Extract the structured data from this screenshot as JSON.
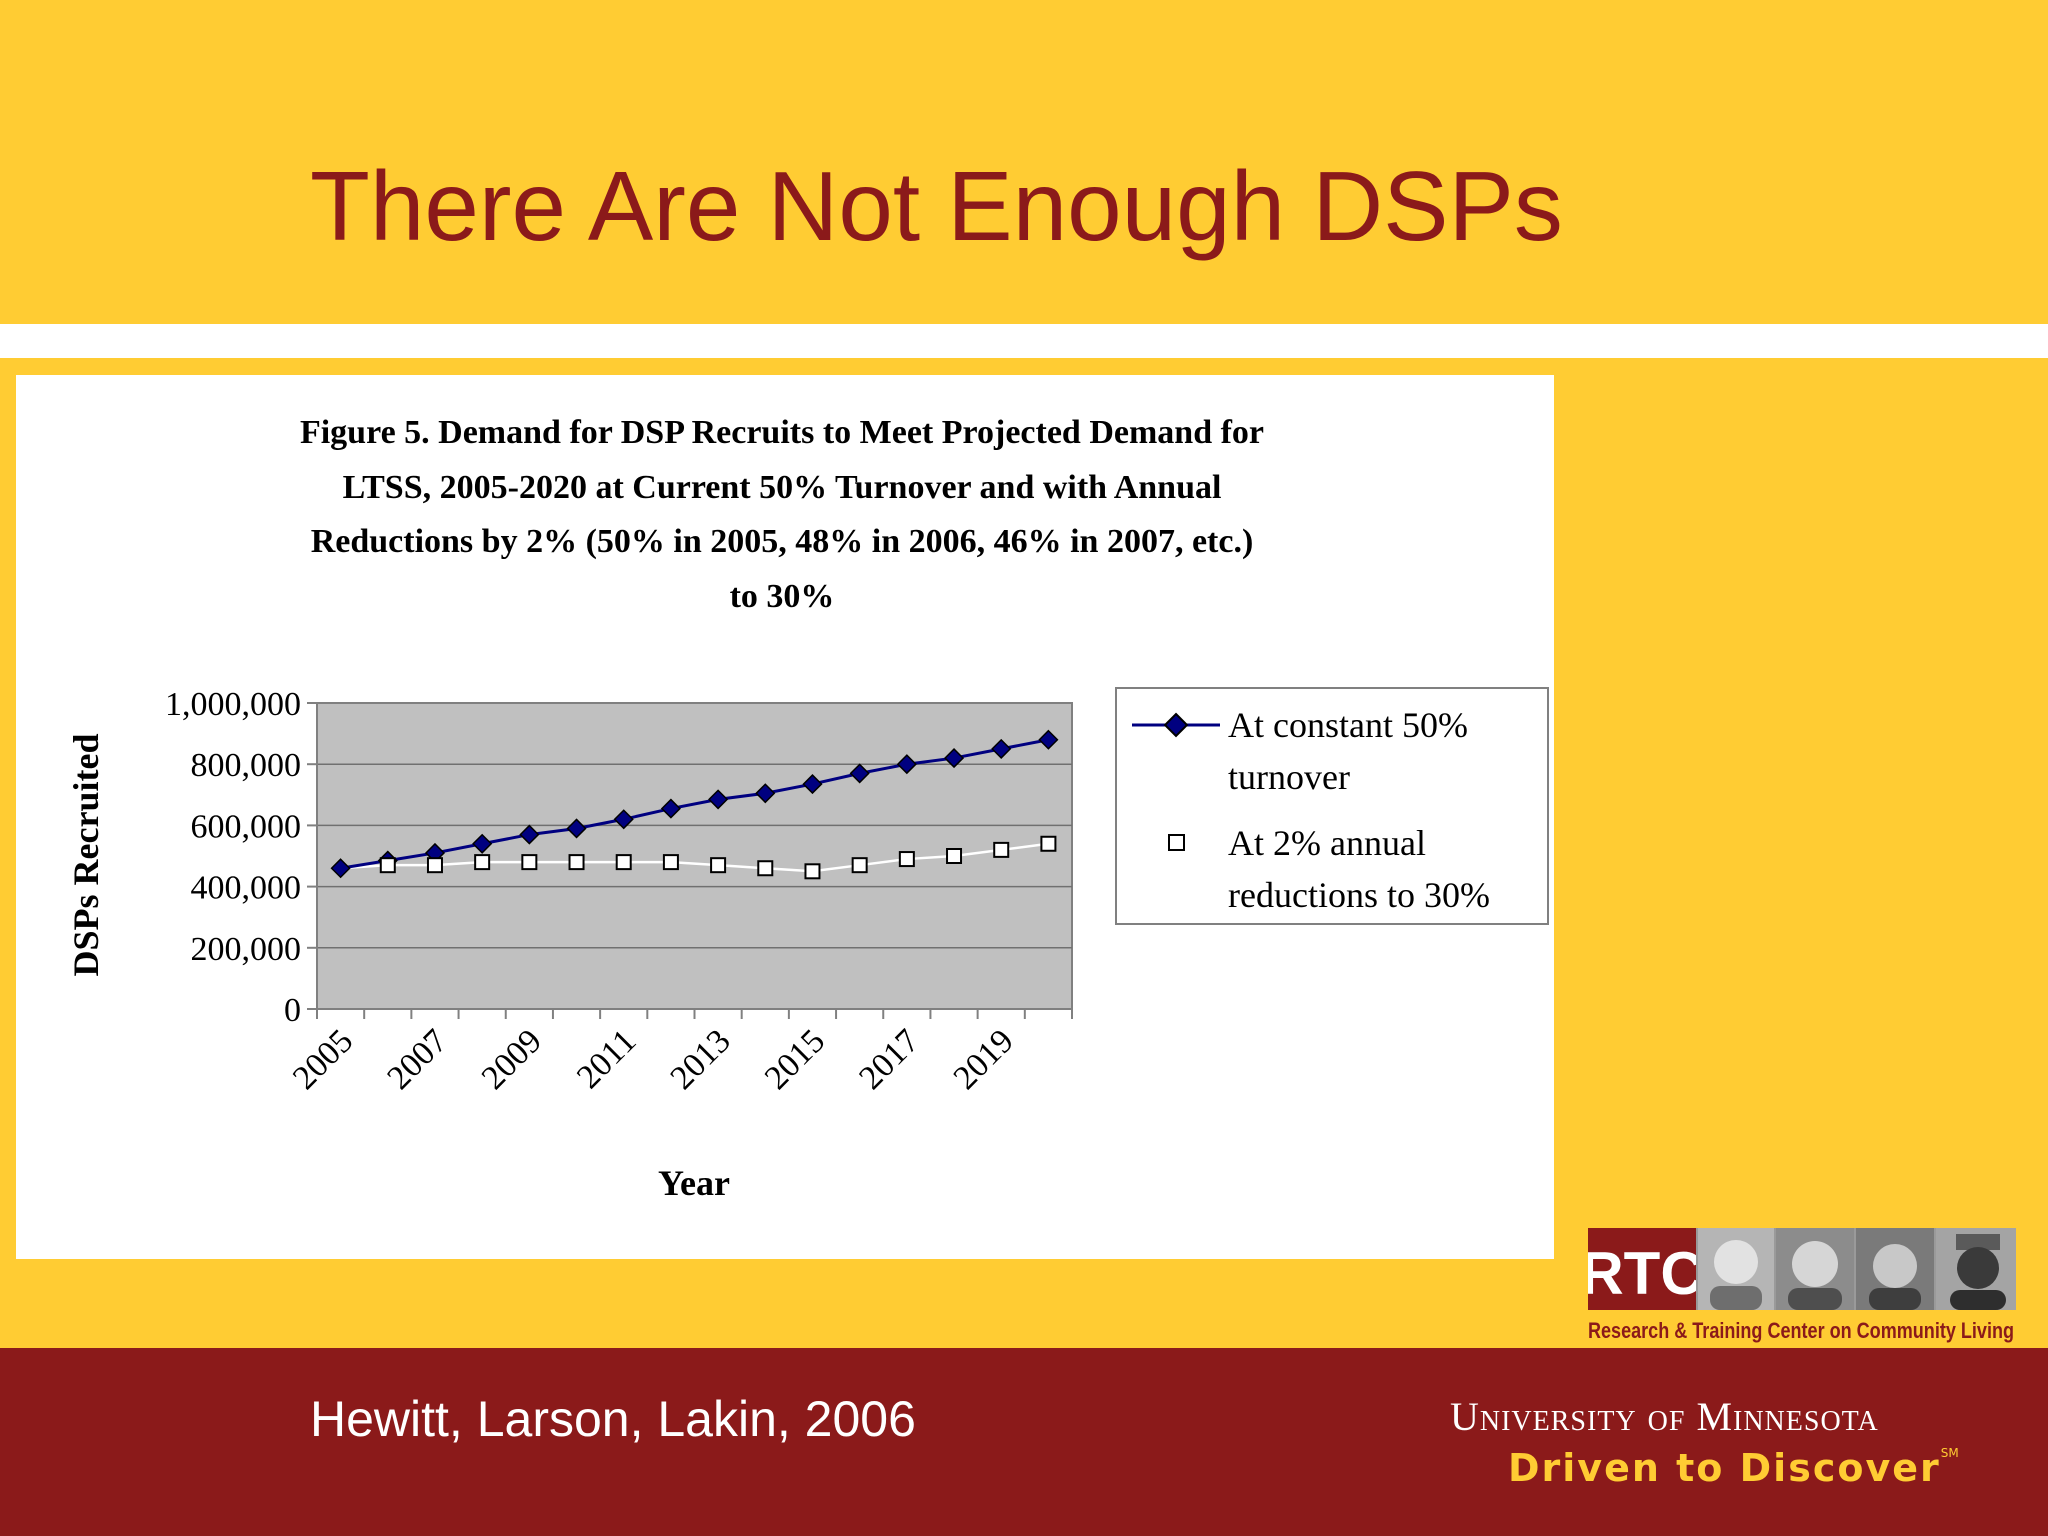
{
  "slide": {
    "title": "There Are Not Enough DSPs",
    "citation": "Hewitt, Larson, Lakin, 2006"
  },
  "branding": {
    "rtc_initials": "RTC",
    "rtc_name": "Research & Training Center on Community Living",
    "university": "University of Minnesota",
    "tagline": "Driven to Discover",
    "tagline_mark": "SM"
  },
  "colors": {
    "gold": "#FFCC33",
    "maroon": "#8B1A1A",
    "plot_bg": "#C0C0C0",
    "series_line": "#000080"
  },
  "chart_data": {
    "type": "line",
    "title_lines": [
      "Figure 5. Demand for DSP Recruits to Meet Projected Demand for",
      "LTSS, 2005-2020 at Current 50%  Turnover and with Annual",
      "Reductions by 2%   (50%  in 2005, 48%  in 2006, 46%  in 2007, etc.)",
      "to 30%"
    ],
    "xlabel": "Year",
    "ylabel": "DSPs Recruited",
    "x": [
      2005,
      2006,
      2007,
      2008,
      2009,
      2010,
      2011,
      2012,
      2013,
      2014,
      2015,
      2016,
      2017,
      2018,
      2019,
      2020
    ],
    "x_tick_labels": [
      "2005",
      "2007",
      "2009",
      "2011",
      "2013",
      "2015",
      "2017",
      "2019"
    ],
    "ylim": [
      0,
      1000000
    ],
    "y_ticks": [
      0,
      200000,
      400000,
      600000,
      800000,
      1000000
    ],
    "y_tick_labels": [
      "0",
      "200,000",
      "400,000",
      "600,000",
      "800,000",
      "1,000,000"
    ],
    "grid": "horizontal",
    "legend_position": "right",
    "series": [
      {
        "name_lines": [
          "At constant 50%",
          "turnover"
        ],
        "marker": "filled-diamond",
        "values": [
          460000,
          485000,
          510000,
          540000,
          570000,
          590000,
          620000,
          655000,
          685000,
          705000,
          735000,
          770000,
          800000,
          820000,
          850000,
          880000
        ]
      },
      {
        "name_lines": [
          "At 2% annual",
          "reductions to 30%"
        ],
        "marker": "open-square",
        "values": [
          460000,
          470000,
          470000,
          480000,
          480000,
          480000,
          480000,
          480000,
          470000,
          460000,
          450000,
          470000,
          490000,
          500000,
          520000,
          540000
        ]
      }
    ]
  }
}
